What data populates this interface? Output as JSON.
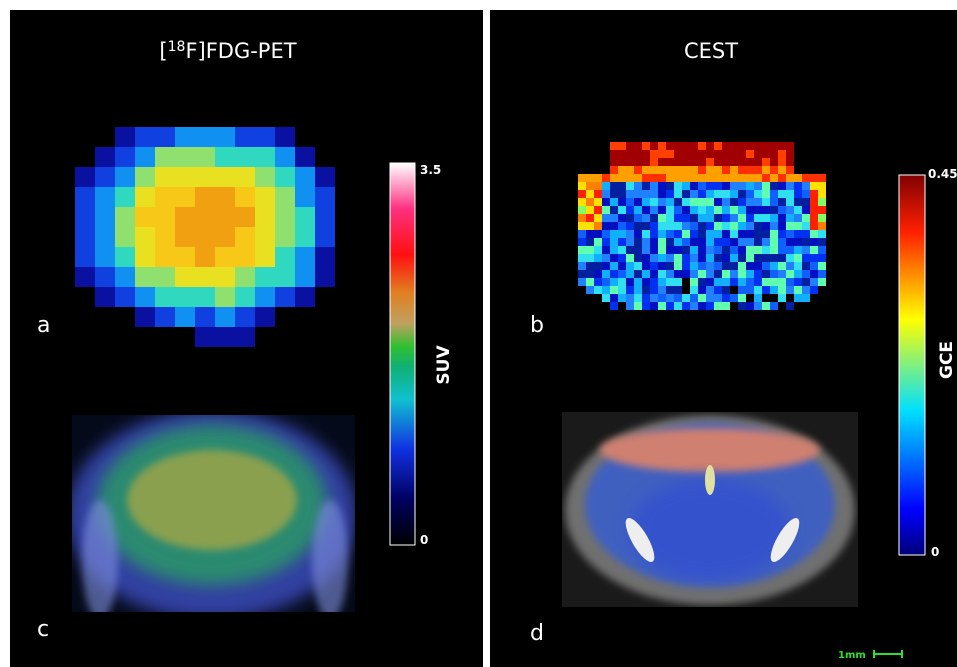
{
  "panels": [
    {
      "title": {
        "open": "[",
        "sup": "18",
        "rest": "F]FDG-PET"
      },
      "top_label": "a",
      "bottom_label": "c",
      "colorbar": {
        "max": "3.5",
        "min": "0",
        "label": "SUV"
      }
    },
    {
      "title": {
        "open": "",
        "sup": "",
        "rest": "CEST"
      },
      "top_label": "b",
      "bottom_label": "d",
      "colorbar": {
        "max": "0.45",
        "min": "0",
        "label": "GCE"
      }
    }
  ],
  "scale_bar": "1mm"
}
